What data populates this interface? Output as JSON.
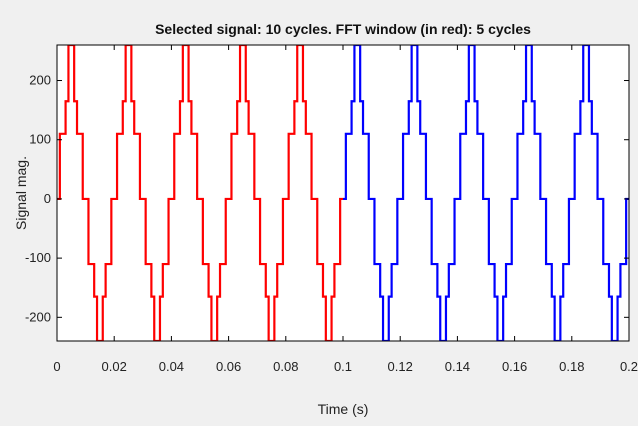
{
  "chart_data": {
    "type": "line",
    "title": "Selected signal: 10 cycles. FFT window (in red): 5 cycles",
    "xlabel": "Time (s)",
    "ylabel": "Signal mag.",
    "xlim": [
      0,
      0.2
    ],
    "ylim": [
      -240,
      260
    ],
    "x_ticks": [
      0,
      0.02,
      0.04,
      0.06,
      0.08,
      0.1,
      0.12,
      0.14,
      0.16,
      0.18,
      0.2
    ],
    "x_tick_labels": [
      "0",
      "0.02",
      "0.04",
      "0.06",
      "0.08",
      "0.1",
      "0.12",
      "0.14",
      "0.16",
      "0.18",
      "0.2"
    ],
    "y_ticks": [
      -200,
      -100,
      0,
      100,
      200
    ],
    "y_tick_labels": [
      "-200",
      "-100",
      "0",
      "100",
      "200"
    ],
    "grid": false,
    "fundamental_period_s": 0.02,
    "step_levels": [
      0,
      110,
      165,
      260,
      165,
      110,
      0,
      -110,
      -165,
      -240,
      -165,
      -110,
      0
    ],
    "step_times_s": [
      0,
      0.001,
      0.003,
      0.004,
      0.006,
      0.007,
      0.009,
      0.011,
      0.013,
      0.014,
      0.016,
      0.017,
      0.019
    ],
    "series": [
      {
        "name": "FFT window",
        "color": "#ff0000",
        "x_range": [
          0,
          0.1
        ],
        "cycles": 5
      },
      {
        "name": "",
        "color": "#0000ff",
        "x_range": [
          0.1,
          0.2
        ],
        "cycles": 5
      }
    ]
  }
}
